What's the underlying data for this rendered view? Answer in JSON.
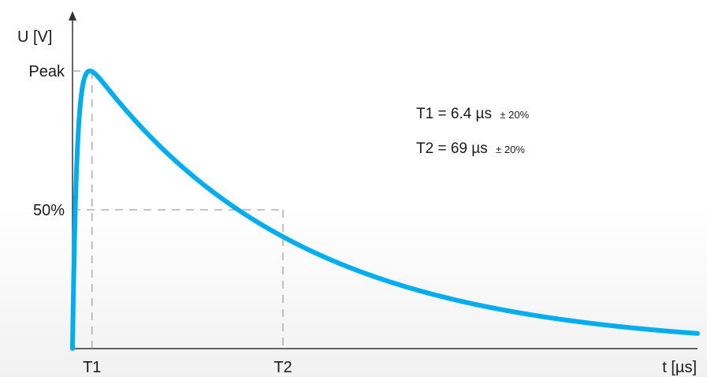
{
  "chart_data": {
    "type": "line",
    "title": "",
    "ylabel": "U [V]",
    "xlabel": "t [µs]",
    "y_ticks": [
      "Peak",
      "50%"
    ],
    "x_ticks": [
      "T1",
      "T2"
    ],
    "annotations": [
      {
        "label": "T1 = 6.4 µs",
        "tolerance": "± 20%"
      },
      {
        "label": "T2 =  69 µs",
        "tolerance": "± 20%"
      }
    ],
    "key_points": {
      "peak_time_us": 6.4,
      "half_time_us": 69,
      "peak_level": 1.0,
      "half_level": 0.5
    },
    "series": [
      {
        "color": "#00aeef"
      }
    ],
    "grid": false,
    "guides": "dashed"
  }
}
